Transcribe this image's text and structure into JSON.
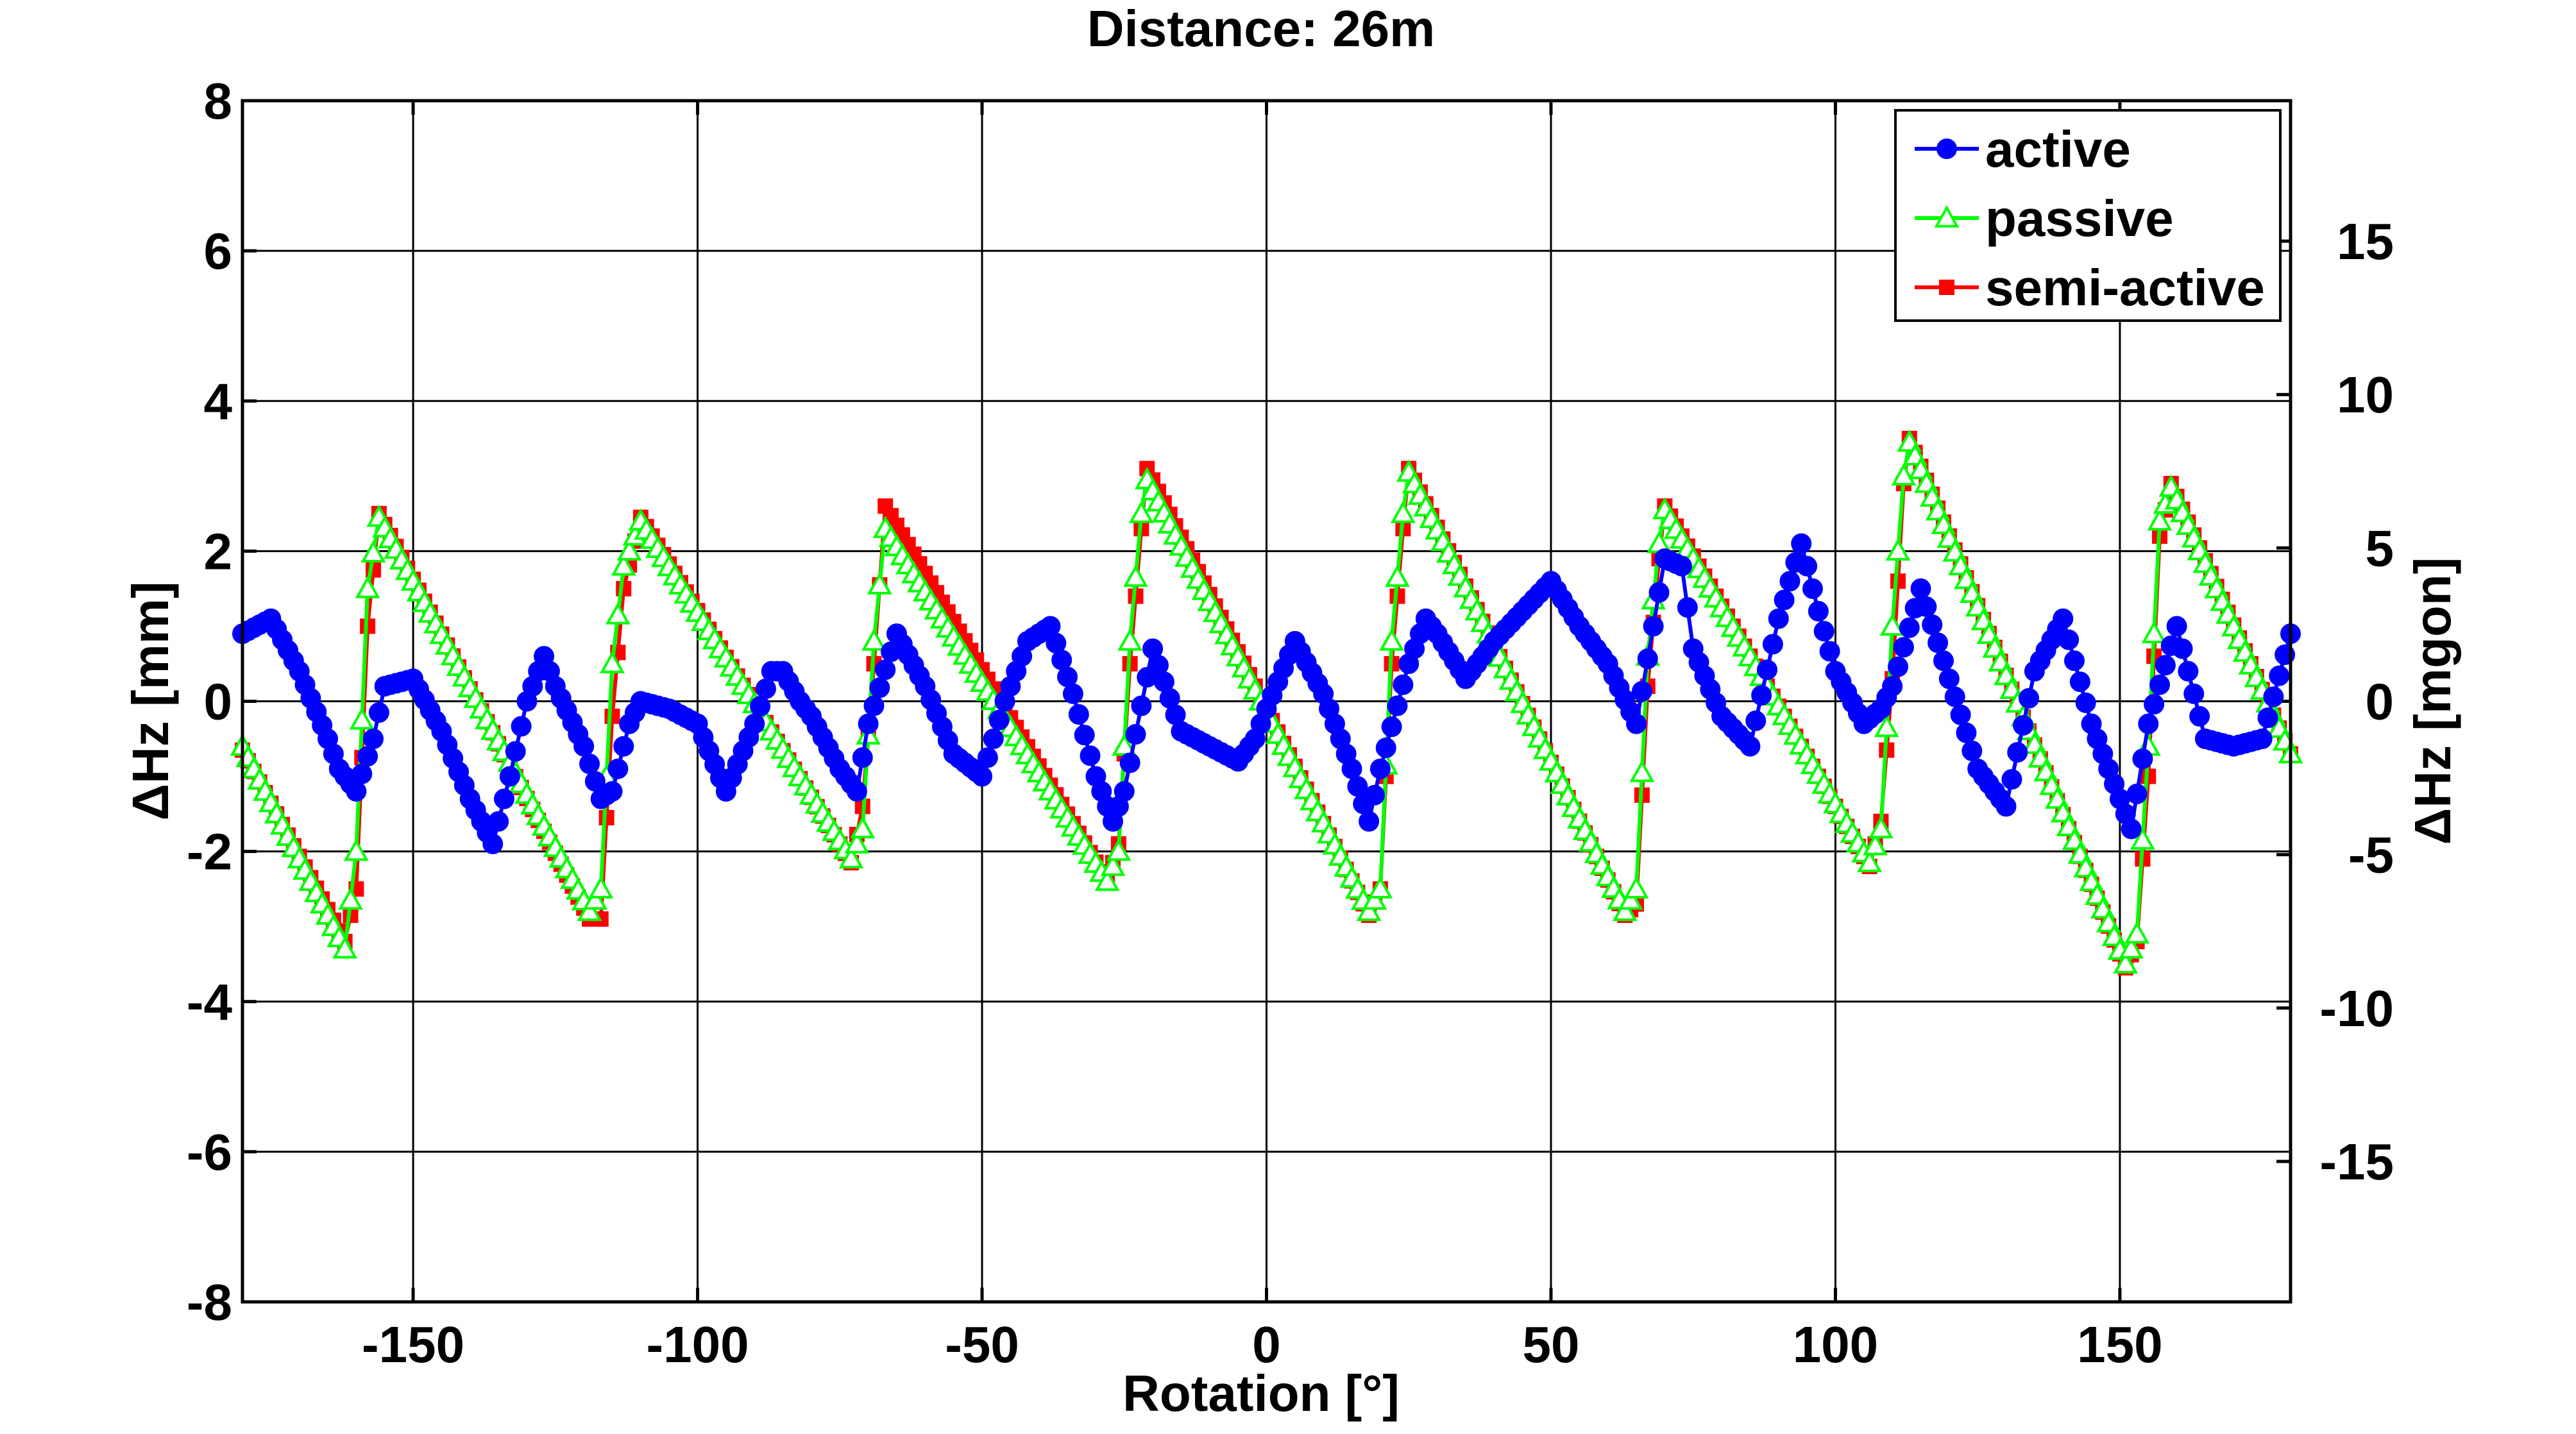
{
  "chart_data": {
    "type": "line",
    "title": "Distance: 26m",
    "xlabel": "Rotation [°]",
    "ylabel": "ΔHz [mm]",
    "ylabel_right": "ΔHz [mgon]",
    "xlim": [
      -180,
      180
    ],
    "ylim": [
      -8,
      8
    ],
    "ylim_right": [
      -19.58,
      19.58
    ],
    "x_ticks": [
      -150,
      -100,
      -50,
      0,
      50,
      100,
      150
    ],
    "x_tick_labels": [
      "-150",
      "-100",
      "-50",
      "0",
      "50",
      "100",
      "150"
    ],
    "y_ticks": [
      -8,
      -6,
      -4,
      -2,
      0,
      2,
      4,
      6,
      8
    ],
    "y_tick_labels": [
      "-8",
      "-6",
      "-4",
      "-2",
      "0",
      "2",
      "4",
      "6",
      "8"
    ],
    "y_right_ticks": [
      -15,
      -10,
      -5,
      0,
      5,
      10,
      15
    ],
    "y_right_tick_labels": [
      "-15",
      "-10",
      "-5",
      "0",
      "5",
      "10",
      "15"
    ],
    "grid": true,
    "legend_position": "top-right",
    "series": [
      {
        "name": "active",
        "color": "#0000ff",
        "marker": "circle",
        "x": [
          -180,
          -175,
          -170,
          -165,
          -163,
          -160,
          -157,
          -155,
          -150,
          -145,
          -140,
          -136,
          -133,
          -130,
          -127,
          -125,
          -120,
          -117,
          -115,
          -112,
          -110,
          -105,
          -100,
          -95,
          -90,
          -87,
          -85,
          -82,
          -80,
          -75,
          -72,
          -70,
          -65,
          -60,
          -55,
          -50,
          -46,
          -42,
          -38,
          -34,
          -30,
          -27,
          -25,
          -20,
          -15,
          -10,
          -5,
          -2,
          0,
          5,
          10,
          15,
          18,
          20,
          25,
          28,
          30,
          35,
          40,
          45,
          50,
          55,
          60,
          65,
          68,
          70,
          73,
          75,
          80,
          85,
          90,
          94,
          97,
          100,
          105,
          108,
          110,
          115,
          120,
          125,
          130,
          135,
          140,
          145,
          150,
          152,
          155,
          160,
          165,
          170,
          175,
          180
        ],
        "y": [
          0.9,
          1.1,
          0.4,
          -0.5,
          -0.9,
          -1.2,
          -0.5,
          0.2,
          0.3,
          -0.4,
          -1.3,
          -1.9,
          -1.0,
          0.0,
          0.6,
          0.2,
          -0.6,
          -1.3,
          -1.2,
          -0.3,
          0.0,
          -0.1,
          -0.3,
          -1.2,
          -0.3,
          0.4,
          0.4,
          0.0,
          -0.2,
          -0.9,
          -1.2,
          -0.3,
          0.9,
          0.2,
          -0.7,
          -1.0,
          0.0,
          0.8,
          1.0,
          0.1,
          -1.0,
          -1.6,
          -1.2,
          0.7,
          -0.4,
          -0.6,
          -0.8,
          -0.5,
          -0.1,
          0.8,
          0.1,
          -0.9,
          -1.6,
          -0.9,
          0.5,
          1.1,
          0.9,
          0.3,
          0.8,
          1.2,
          1.6,
          1.0,
          0.5,
          -0.3,
          1.0,
          1.9,
          1.8,
          0.7,
          -0.2,
          -0.6,
          1.1,
          2.1,
          1.2,
          0.4,
          -0.3,
          -0.1,
          0.2,
          1.5,
          0.3,
          -0.9,
          -1.4,
          0.4,
          1.1,
          -0.3,
          -1.3,
          -1.7,
          -0.3,
          1.0,
          -0.5,
          -0.6,
          -0.5,
          0.9
        ]
      },
      {
        "name": "passive",
        "color": "#00ff00",
        "marker": "triangle",
        "x": [
          -180,
          -162,
          -160,
          -158,
          -156,
          -119,
          -117,
          -115,
          -113,
          -110,
          -73,
          -71,
          -69,
          -67,
          -28,
          -26,
          -24,
          -22,
          -21,
          18,
          20,
          22,
          24,
          25,
          63,
          65,
          67,
          69,
          70,
          106,
          108,
          110,
          112,
          113,
          151,
          153,
          155,
          157,
          159,
          180
        ],
        "y": [
          -0.6,
          -3.3,
          -2.0,
          1.5,
          2.45,
          -2.8,
          -2.5,
          0.5,
          1.8,
          2.4,
          -2.1,
          -1.7,
          0.8,
          2.3,
          -2.4,
          -2.0,
          0.8,
          2.5,
          2.95,
          -2.8,
          -2.5,
          0.8,
          2.5,
          3.05,
          -2.8,
          -2.5,
          0.6,
          2.1,
          2.55,
          -2.15,
          -1.7,
          1.0,
          3.0,
          3.45,
          -3.5,
          -3.1,
          -0.6,
          2.4,
          2.85,
          -0.7
        ]
      },
      {
        "name": "semi-active",
        "color": "#ff0000",
        "marker": "square",
        "x": [
          -180,
          -162,
          -160,
          -158,
          -156,
          -119,
          -117,
          -115,
          -113,
          -110,
          -73,
          -71,
          -69,
          -67,
          -28,
          -26,
          -24,
          -22,
          -21,
          18,
          20,
          22,
          24,
          25,
          63,
          65,
          67,
          69,
          70,
          106,
          108,
          110,
          112,
          113,
          151,
          153,
          155,
          157,
          159,
          180
        ],
        "y": [
          -0.65,
          -3.2,
          -2.5,
          1.0,
          2.5,
          -2.9,
          -2.9,
          -0.2,
          1.5,
          2.45,
          -2.15,
          -1.4,
          0.5,
          2.6,
          -2.4,
          -1.9,
          0.5,
          2.3,
          3.1,
          -2.85,
          -2.5,
          0.5,
          2.3,
          3.1,
          -2.85,
          -2.7,
          0.2,
          1.9,
          2.6,
          -2.2,
          -1.6,
          0.3,
          2.9,
          3.5,
          -3.55,
          -3.2,
          -1.0,
          2.2,
          2.9,
          -0.7
        ]
      }
    ]
  }
}
